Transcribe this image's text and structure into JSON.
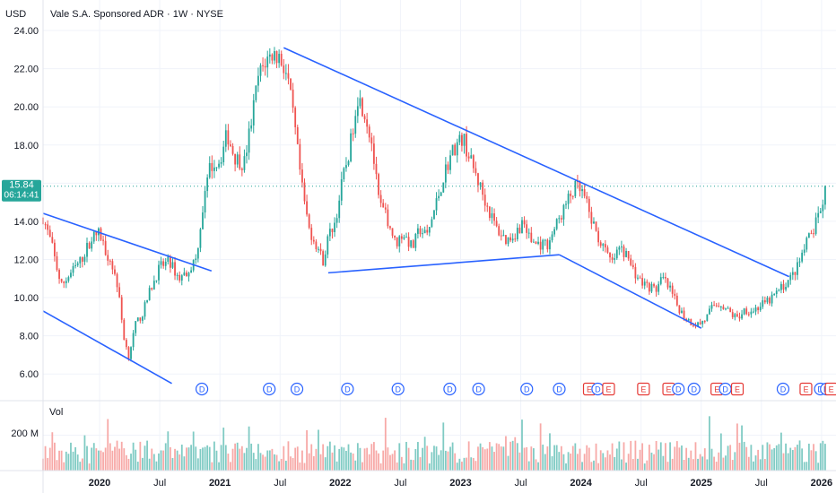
{
  "chart_data": {
    "type": "candlestick",
    "title": "Vale S.A. Sponsored ADR · 1W · NYSE",
    "currency_label": "USD",
    "y_ticks": [
      "24.00",
      "22.00",
      "20.00",
      "18.00",
      "16.00",
      "14.00",
      "12.00",
      "10.00",
      "8.00",
      "6.00"
    ],
    "y_tick_values": [
      24,
      22,
      20,
      18,
      16,
      14,
      12,
      10,
      8,
      6
    ],
    "ylim": [
      4.6,
      25.6
    ],
    "x_ticks": [
      {
        "label": "2020",
        "t": 2020.0
      },
      {
        "label": "Jul",
        "t": 2020.5
      },
      {
        "label": "2021",
        "t": 2021.0
      },
      {
        "label": "Jul",
        "t": 2021.5
      },
      {
        "label": "2022",
        "t": 2022.0
      },
      {
        "label": "Jul",
        "t": 2022.5
      },
      {
        "label": "2023",
        "t": 2023.0
      },
      {
        "label": "Jul",
        "t": 2023.5
      },
      {
        "label": "2024",
        "t": 2024.0
      },
      {
        "label": "Jul",
        "t": 2024.5
      },
      {
        "label": "2025",
        "t": 2025.0
      },
      {
        "label": "Jul",
        "t": 2025.5
      },
      {
        "label": "2026",
        "t": 2026.0
      }
    ],
    "xlim": [
      2019.53,
      2026.12
    ],
    "price_path": [
      [
        2019.53,
        14.2
      ],
      [
        2019.6,
        12.8
      ],
      [
        2019.68,
        10.6
      ],
      [
        2019.75,
        11.2
      ],
      [
        2019.85,
        12.0
      ],
      [
        2019.93,
        13.1
      ],
      [
        2020.0,
        13.4
      ],
      [
        2020.04,
        12.6
      ],
      [
        2020.1,
        11.8
      ],
      [
        2020.15,
        10.6
      ],
      [
        2020.2,
        8.0
      ],
      [
        2020.24,
        6.9
      ],
      [
        2020.3,
        8.6
      ],
      [
        2020.36,
        9.2
      ],
      [
        2020.42,
        10.4
      ],
      [
        2020.5,
        11.6
      ],
      [
        2020.58,
        11.9
      ],
      [
        2020.66,
        11.0
      ],
      [
        2020.72,
        11.3
      ],
      [
        2020.8,
        12.0
      ],
      [
        2020.86,
        14.8
      ],
      [
        2020.92,
        16.9
      ],
      [
        2021.0,
        17.2
      ],
      [
        2021.06,
        18.6
      ],
      [
        2021.12,
        17.4
      ],
      [
        2021.2,
        17.0
      ],
      [
        2021.26,
        19.2
      ],
      [
        2021.32,
        21.6
      ],
      [
        2021.38,
        22.4
      ],
      [
        2021.44,
        22.8
      ],
      [
        2021.5,
        22.6
      ],
      [
        2021.56,
        21.6
      ],
      [
        2021.62,
        19.0
      ],
      [
        2021.68,
        15.8
      ],
      [
        2021.74,
        13.6
      ],
      [
        2021.8,
        12.8
      ],
      [
        2021.86,
        11.9
      ],
      [
        2021.9,
        13.2
      ],
      [
        2021.96,
        14.0
      ],
      [
        2022.02,
        16.2
      ],
      [
        2022.08,
        17.8
      ],
      [
        2022.14,
        20.6
      ],
      [
        2022.2,
        19.8
      ],
      [
        2022.26,
        18.2
      ],
      [
        2022.32,
        15.0
      ],
      [
        2022.4,
        14.0
      ],
      [
        2022.46,
        12.8
      ],
      [
        2022.52,
        13.4
      ],
      [
        2022.6,
        12.6
      ],
      [
        2022.66,
        13.6
      ],
      [
        2022.72,
        13.2
      ],
      [
        2022.8,
        15.0
      ],
      [
        2022.88,
        16.8
      ],
      [
        2022.94,
        17.8
      ],
      [
        2023.02,
        18.4
      ],
      [
        2023.08,
        17.2
      ],
      [
        2023.14,
        16.2
      ],
      [
        2023.22,
        14.8
      ],
      [
        2023.3,
        13.6
      ],
      [
        2023.38,
        13.0
      ],
      [
        2023.46,
        13.4
      ],
      [
        2023.52,
        14.0
      ],
      [
        2023.58,
        13.0
      ],
      [
        2023.64,
        12.8
      ],
      [
        2023.72,
        12.8
      ],
      [
        2023.78,
        13.6
      ],
      [
        2023.84,
        14.4
      ],
      [
        2023.9,
        15.2
      ],
      [
        2023.96,
        15.8
      ],
      [
        2024.02,
        15.4
      ],
      [
        2024.08,
        14.2
      ],
      [
        2024.14,
        13.2
      ],
      [
        2024.2,
        12.4
      ],
      [
        2024.26,
        11.8
      ],
      [
        2024.32,
        12.6
      ],
      [
        2024.38,
        12.2
      ],
      [
        2024.44,
        11.4
      ],
      [
        2024.5,
        10.8
      ],
      [
        2024.56,
        10.6
      ],
      [
        2024.62,
        10.4
      ],
      [
        2024.68,
        11.0
      ],
      [
        2024.74,
        10.4
      ],
      [
        2024.8,
        9.6
      ],
      [
        2024.86,
        9.0
      ],
      [
        2024.92,
        8.7
      ],
      [
        2024.98,
        8.6
      ],
      [
        2025.04,
        8.9
      ],
      [
        2025.1,
        9.6
      ],
      [
        2025.16,
        9.7
      ],
      [
        2025.24,
        9.2
      ],
      [
        2025.3,
        8.9
      ],
      [
        2025.36,
        9.4
      ],
      [
        2025.42,
        9.3
      ],
      [
        2025.5,
        9.6
      ],
      [
        2025.56,
        9.8
      ],
      [
        2025.62,
        10.2
      ],
      [
        2025.68,
        10.6
      ],
      [
        2025.74,
        11.0
      ],
      [
        2025.8,
        11.6
      ],
      [
        2025.86,
        12.6
      ],
      [
        2025.9,
        13.2
      ],
      [
        2025.94,
        13.6
      ],
      [
        2025.98,
        14.4
      ],
      [
        2026.02,
        15.1
      ],
      [
        2026.04,
        15.84
      ]
    ],
    "last_price": 15.84,
    "last_price_label": "15.84",
    "countdown_label": "06:14:41",
    "trendlines": [
      {
        "from": [
          2019.53,
          14.42
        ],
        "to": [
          2020.93,
          11.4
        ]
      },
      {
        "from": [
          2019.53,
          9.3
        ],
        "to": [
          2020.6,
          5.5
        ]
      },
      {
        "from": [
          2021.53,
          23.1
        ],
        "to": [
          2025.73,
          11.1
        ]
      },
      {
        "from": [
          2021.9,
          11.3
        ],
        "to": [
          2023.82,
          12.25
        ]
      },
      {
        "from": [
          2023.82,
          12.25
        ],
        "to": [
          2025.0,
          8.4
        ]
      }
    ],
    "events": [
      {
        "type": "D",
        "t": 2020.85
      },
      {
        "type": "D",
        "t": 2021.41
      },
      {
        "type": "D",
        "t": 2021.64
      },
      {
        "type": "D",
        "t": 2022.06
      },
      {
        "type": "D",
        "t": 2022.48
      },
      {
        "type": "D",
        "t": 2022.91
      },
      {
        "type": "D",
        "t": 2023.15
      },
      {
        "type": "D",
        "t": 2023.55
      },
      {
        "type": "D",
        "t": 2023.82
      },
      {
        "type": "E",
        "t": 2024.07
      },
      {
        "type": "D",
        "t": 2024.14
      },
      {
        "type": "E",
        "t": 2024.23
      },
      {
        "type": "E",
        "t": 2024.52
      },
      {
        "type": "E",
        "t": 2024.73
      },
      {
        "type": "D",
        "t": 2024.81
      },
      {
        "type": "D",
        "t": 2024.94
      },
      {
        "type": "E",
        "t": 2025.13
      },
      {
        "type": "D",
        "t": 2025.2
      },
      {
        "type": "E",
        "t": 2025.3
      },
      {
        "type": "D",
        "t": 2025.68
      },
      {
        "type": "E",
        "t": 2025.87
      },
      {
        "type": "D",
        "t": 2025.99
      },
      {
        "type": "D",
        "t": 2026.04
      },
      {
        "type": "E",
        "t": 2026.08
      }
    ],
    "volume_label": "Vol",
    "volume_tick": "200 M",
    "volume_tick_value": 200,
    "volume_max": 370,
    "colors": {
      "up": "#26a69a",
      "down": "#ef5350",
      "up_volume": "#80cbc4",
      "down_volume": "#f7a9a7",
      "trendline": "#2962ff",
      "price_line": "#26a69a",
      "grid": "#f0f3fa",
      "dividend_badge": "#2962ff",
      "earnings_badge": "#e53935"
    }
  }
}
